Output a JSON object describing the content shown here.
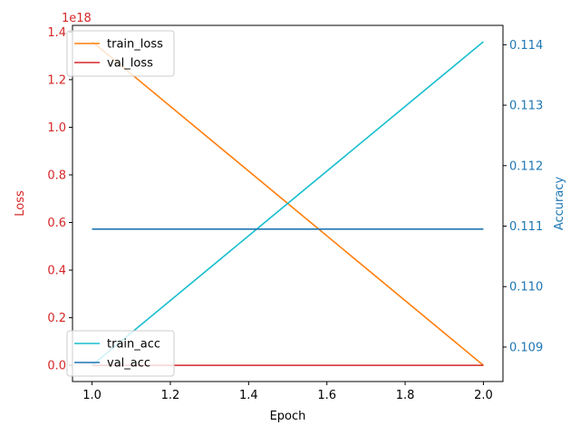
{
  "chart_data": {
    "type": "line",
    "x": [
      1.0,
      2.0
    ],
    "xlabel": "Epoch",
    "xlim": [
      0.95,
      2.05
    ],
    "xticks": [
      "1.0",
      "1.2",
      "1.4",
      "1.6",
      "1.8",
      "2.0"
    ],
    "xtick_values": [
      1.0,
      1.2,
      1.4,
      1.6,
      1.8,
      2.0
    ],
    "left_axis": {
      "label": "Loss",
      "color": "#d62728",
      "offset_label": "1e18",
      "ylim": [
        -0.068,
        1.428
      ],
      "ticks": [
        "0.0",
        "0.2",
        "0.4",
        "0.6",
        "0.8",
        "1.0",
        "1.2",
        "1.4"
      ],
      "tick_values": [
        0.0,
        0.2,
        0.4,
        0.6,
        0.8,
        1.0,
        1.2,
        1.4
      ],
      "series": [
        {
          "name": "train_loss",
          "color": "#ff7f0e",
          "values": [
            1.36,
            0.0
          ]
        },
        {
          "name": "val_loss",
          "color": "#d62728",
          "values": [
            0.0,
            0.0
          ]
        }
      ],
      "legend_position": "upper-left"
    },
    "right_axis": {
      "label": "Accuracy",
      "color": "#1f77b4",
      "ylim": [
        0.10843,
        0.11432
      ],
      "ticks": [
        "0.109",
        "0.110",
        "0.111",
        "0.112",
        "0.113",
        "0.114"
      ],
      "tick_values": [
        0.109,
        0.11,
        0.111,
        0.112,
        0.113,
        0.114
      ],
      "series": [
        {
          "name": "train_acc",
          "color": "#17becf",
          "values": [
            0.1087,
            0.11405
          ]
        },
        {
          "name": "val_acc",
          "color": "#1f77b4",
          "values": [
            0.11095,
            0.11095
          ]
        }
      ],
      "legend_position": "lower-left"
    },
    "grid": false
  }
}
